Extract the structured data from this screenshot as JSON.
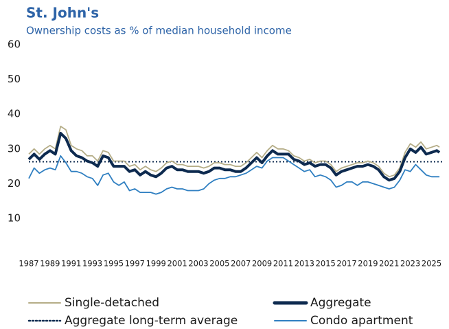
{
  "chart_data": {
    "type": "line",
    "title": "St. John's",
    "subtitle": "Ownership costs as % of median household income",
    "x": [
      1987,
      1987.5,
      1988,
      1988.5,
      1989,
      1989.5,
      1990,
      1990.5,
      1991,
      1991.5,
      1992,
      1992.5,
      1993,
      1993.5,
      1994,
      1994.5,
      1995,
      1995.5,
      1996,
      1996.5,
      1997,
      1997.5,
      1998,
      1998.5,
      1999,
      1999.5,
      2000,
      2000.5,
      2001,
      2001.5,
      2002,
      2002.5,
      2003,
      2003.5,
      2004,
      2004.5,
      2005,
      2005.5,
      2006,
      2006.5,
      2007,
      2007.5,
      2008,
      2008.5,
      2009,
      2009.5,
      2010,
      2010.5,
      2011,
      2011.5,
      2012,
      2012.5,
      2013,
      2013.5,
      2014,
      2014.5,
      2015,
      2015.5,
      2016,
      2016.5,
      2017,
      2017.5,
      2018,
      2018.5,
      2019,
      2019.5,
      2020,
      2020.5,
      2021,
      2021.5,
      2022,
      2022.5,
      2023,
      2023.5,
      2024,
      2024.5,
      2025,
      2025.5,
      2025.75
    ],
    "series": [
      {
        "name": "Single-detached",
        "color": "#b5ad87",
        "width": 1.8,
        "values": [
          28.5,
          30,
          28.5,
          30,
          31,
          30,
          36.5,
          35.5,
          31,
          30,
          29.5,
          28,
          28,
          26.5,
          29.5,
          29,
          26.5,
          26.5,
          26.5,
          25,
          25.5,
          24,
          25,
          24,
          23.5,
          24.5,
          26,
          26.5,
          25.5,
          25.5,
          25,
          25,
          25,
          24.5,
          25,
          26,
          26,
          25.5,
          25.5,
          25,
          25,
          26,
          27.5,
          29,
          27.5,
          29.5,
          31,
          30,
          30,
          29.5,
          28,
          27.5,
          26.5,
          27,
          26,
          26.5,
          26.5,
          25.5,
          23.5,
          24.5,
          25,
          25.5,
          26,
          26,
          26.5,
          26,
          25,
          23,
          22,
          22.5,
          24.5,
          29,
          31.5,
          30.5,
          32,
          30,
          30.5,
          31,
          30.5
        ]
      },
      {
        "name": "Aggregate",
        "color": "#0d2a4f",
        "width": 4,
        "values": [
          27,
          28.5,
          27,
          28.5,
          29.5,
          28.5,
          34.5,
          33,
          29.5,
          28,
          27.5,
          26.5,
          26,
          25,
          28,
          27.5,
          25,
          25,
          25,
          23.5,
          24,
          22.5,
          23.5,
          22.5,
          22,
          23,
          24.5,
          25,
          24,
          24,
          23.5,
          23.5,
          23.5,
          23,
          23.5,
          24.5,
          24.5,
          24,
          24,
          23.5,
          23.5,
          24.5,
          26,
          27.5,
          26,
          28,
          29.5,
          28.5,
          28.5,
          28.5,
          27,
          26.5,
          25.5,
          26,
          25,
          25.5,
          25.5,
          24.5,
          22.5,
          23.5,
          24,
          24.5,
          25,
          25,
          25.5,
          25,
          24,
          22,
          21,
          21.5,
          23.5,
          27.5,
          30,
          29,
          30.5,
          28.5,
          29,
          29.5,
          29
        ]
      },
      {
        "name": "Condo apartment",
        "color": "#2f7fc1",
        "width": 1.8,
        "values": [
          21.5,
          24.5,
          23,
          24,
          24.5,
          24,
          28,
          26,
          23.5,
          23.5,
          23,
          22,
          21.5,
          19.5,
          22.5,
          23,
          20.5,
          19.5,
          20.5,
          18,
          18.5,
          17.5,
          17.5,
          17.5,
          17,
          17.5,
          18.5,
          19,
          18.5,
          18.5,
          18,
          18,
          18,
          18.5,
          20,
          21,
          21.5,
          21.5,
          22,
          22,
          22.5,
          23,
          24,
          25,
          24.5,
          26.5,
          27.5,
          27.5,
          27.5,
          26.5,
          25.5,
          24.5,
          23.5,
          24,
          22,
          22.5,
          22,
          21,
          19,
          19.5,
          20.5,
          20.5,
          19.5,
          20.5,
          20.5,
          20,
          19.5,
          19,
          18.5,
          19,
          21,
          24,
          23.5,
          25.5,
          24,
          22.5,
          22,
          22,
          22
        ]
      }
    ],
    "reference_line": {
      "name": "Aggregate long-term average",
      "value": 26.3,
      "color": "#0d2a4f"
    },
    "xlim": [
      1987,
      2026
    ],
    "xticks": [
      1987,
      1989,
      1991,
      1993,
      1995,
      1997,
      1999,
      2001,
      2003,
      2005,
      2007,
      2009,
      2011,
      2013,
      2015,
      2017,
      2019,
      2021,
      2023,
      2025
    ],
    "ylim": [
      0,
      60
    ],
    "yticks": [
      10,
      20,
      30,
      40,
      50,
      60
    ]
  }
}
